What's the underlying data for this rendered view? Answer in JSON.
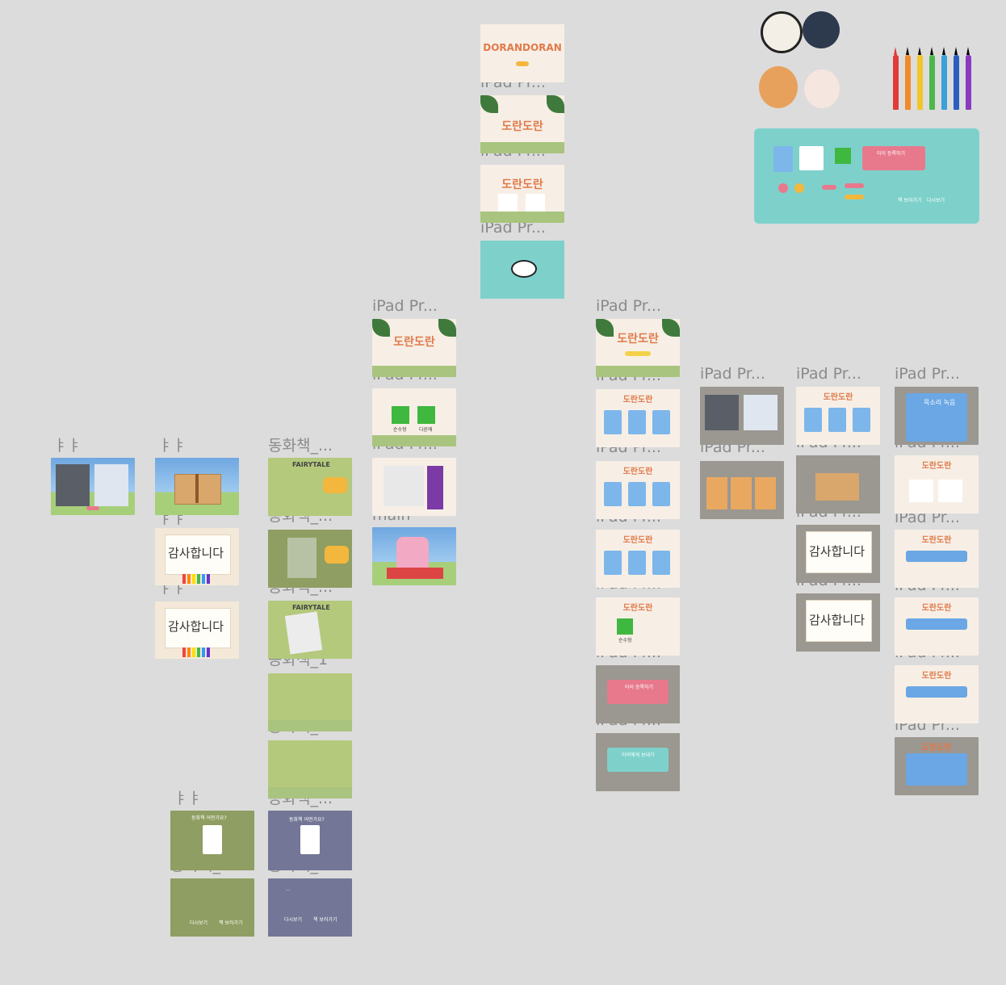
{
  "labels": {
    "col1_a": "ㅑㅑ",
    "col2_a": "ㅑㅑ",
    "col2_b": "ㅑㅑ",
    "col2_c": "ㅑㅑ",
    "col2_d": "ㅑㅑ",
    "col3_a": "동화책_...",
    "col3_b": "동화책_...",
    "col3_c": "동화책_...",
    "col3_d": "동화책_1",
    "col3_e": "동화책_2",
    "col3_f": "동화책_...",
    "col3_g": "동화책_...",
    "col2_e": "동화책_...",
    "col4_a": "iPad Pr...",
    "col4_b": "iPad Pr...",
    "col4_c": "iPad Pr...",
    "col4_main": "main",
    "col5_a": "iPad Pr...",
    "col5_b": "iPad Pr...",
    "col5_c": "iPad Pr...",
    "col6_a": "iPad Pr...",
    "col6_b": "iPad Pr...",
    "col6_c": "iPad Pr...",
    "col6_d": "iPad Pr...",
    "col6_e": "iPad Pr...",
    "col6_f": "iPad Pr...",
    "col6_g": "iPad Pr...",
    "col7_a": "iPad Pr...",
    "col7_b": "iPad Pr...",
    "col8_a": "iPad Pr...",
    "col8_b": "iPad Pr...",
    "col8_c": "iPad Pr...",
    "col8_d": "iPad Pr...",
    "col9_a": "iPad Pr...",
    "col9_b": "iPad Pr...",
    "col9_c": "iPad Pr...",
    "col9_d": "iPad Pr...",
    "col9_e": "iPad Pr...",
    "col9_f": "iPad Pr..."
  },
  "text": {
    "brand_en": "DORANDORAN",
    "brand_ko": "도란도란",
    "thanks": "감사합니다",
    "fairytale": "FAIRYTALE",
    "replay": "다시보기",
    "see_book": "책 보러가기",
    "voice_record": "목소리 녹음",
    "photo_view": "사진 보기",
    "book_make": "책 만들기",
    "sunsu": "순수형",
    "dalyeon": "다른애",
    "story_q": "동화책 어떤가요?",
    "child_reg": "아이 등록하기",
    "child_send": "아이에게 보내기",
    "dots": "..."
  },
  "colors": {
    "canvas": "#dcdcdc",
    "label": "#8a8a8a",
    "teal": "#7ed1cb",
    "pink": "#e8798d",
    "blue": "#6aa7e4"
  }
}
